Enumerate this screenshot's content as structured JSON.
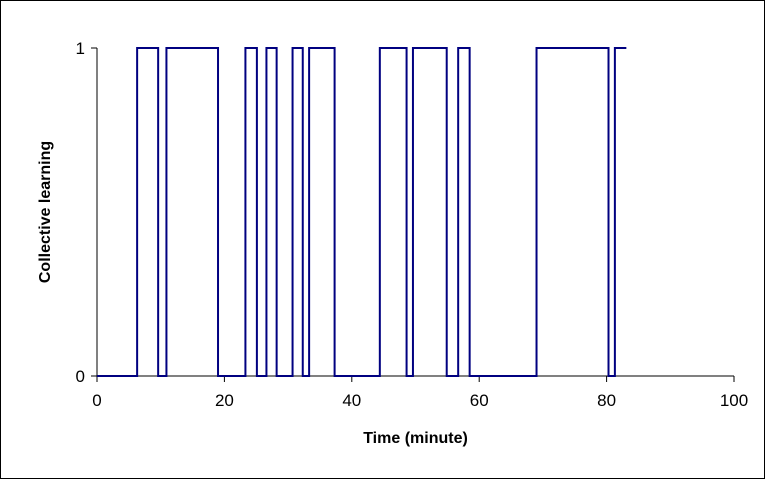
{
  "chart_data": {
    "type": "line",
    "step": true,
    "xlabel": "Time (minute)",
    "ylabel": "Collective learning",
    "xlim": [
      0,
      100
    ],
    "ylim": [
      0,
      1
    ],
    "x_ticks": [
      0,
      20,
      40,
      60,
      80,
      100
    ],
    "y_ticks": [
      0,
      1
    ],
    "grid": false,
    "legend": "none",
    "series": [
      {
        "color": "#000080",
        "x": [
          0,
          6.3,
          9.6,
          10.9,
          19.0,
          23.3,
          25.1,
          26.6,
          28.2,
          30.7,
          32.3,
          33.3,
          37.3,
          44.4,
          48.6,
          49.6,
          54.9,
          56.7,
          58.5,
          69.0,
          80.3,
          81.3,
          83.1
        ],
        "y": [
          0,
          1,
          0,
          1,
          0,
          1,
          0,
          1,
          0,
          1,
          0,
          1,
          0,
          1,
          0,
          1,
          0,
          1,
          0,
          1,
          0,
          1,
          1
        ]
      }
    ]
  }
}
